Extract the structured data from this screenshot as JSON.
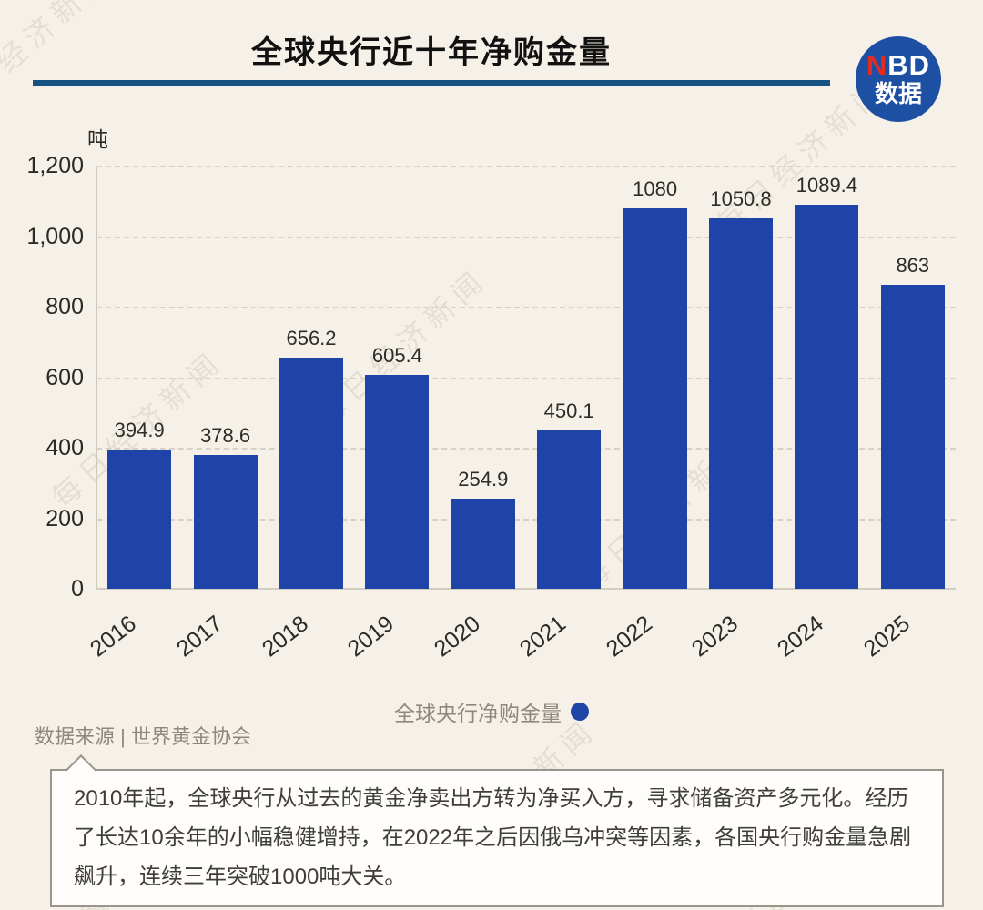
{
  "header": {
    "title": "全球央行近十年净购金量",
    "logo": {
      "line1_red": "N",
      "line1_white": "BD",
      "line2": "数据"
    }
  },
  "chart_data": {
    "type": "bar",
    "title": "全球央行近十年净购金量",
    "ylabel": "吨",
    "categories": [
      "2016",
      "2017",
      "2018",
      "2019",
      "2020",
      "2021",
      "2022",
      "2023",
      "2024",
      "2025"
    ],
    "values": [
      394.9,
      378.6,
      656.2,
      605.4,
      254.9,
      450.1,
      1080,
      1050.8,
      1089.4,
      863
    ],
    "value_labels": [
      "394.9",
      "378.6",
      "656.2",
      "605.4",
      "254.9",
      "450.1",
      "1080",
      "1050.8",
      "1089.4",
      "863"
    ],
    "ylim": [
      0,
      1200
    ],
    "yticks": [
      0,
      200,
      400,
      600,
      800,
      1000,
      1200
    ],
    "ytick_labels": [
      "0",
      "200",
      "400",
      "600",
      "800",
      "1,000",
      "1,200"
    ],
    "grid": "horizontal dashed",
    "legend_position": "bottom",
    "series_name": "全球央行净购金量"
  },
  "legend": {
    "label": "全球央行净购金量"
  },
  "source": {
    "text": "数据来源 | 世界黄金协会"
  },
  "note": {
    "text": "2010年起，全球央行从过去的黄金净卖出方转为净买入方，寻求储备资产多元化。经历了长达10余年的小幅稳健增持，在2022年之后因俄乌冲突等因素，各国央行购金量急剧飙升，连续三年突破1000吨大关。"
  },
  "watermark": {
    "text": "每日经济新闻"
  },
  "colors": {
    "background": "#f6f1e8",
    "bar": "#1e44a7",
    "accent_line": "#165380",
    "logo_blue": "#1d4fa3",
    "logo_red": "#e22b21",
    "legend_dot": "#1e44a7"
  }
}
